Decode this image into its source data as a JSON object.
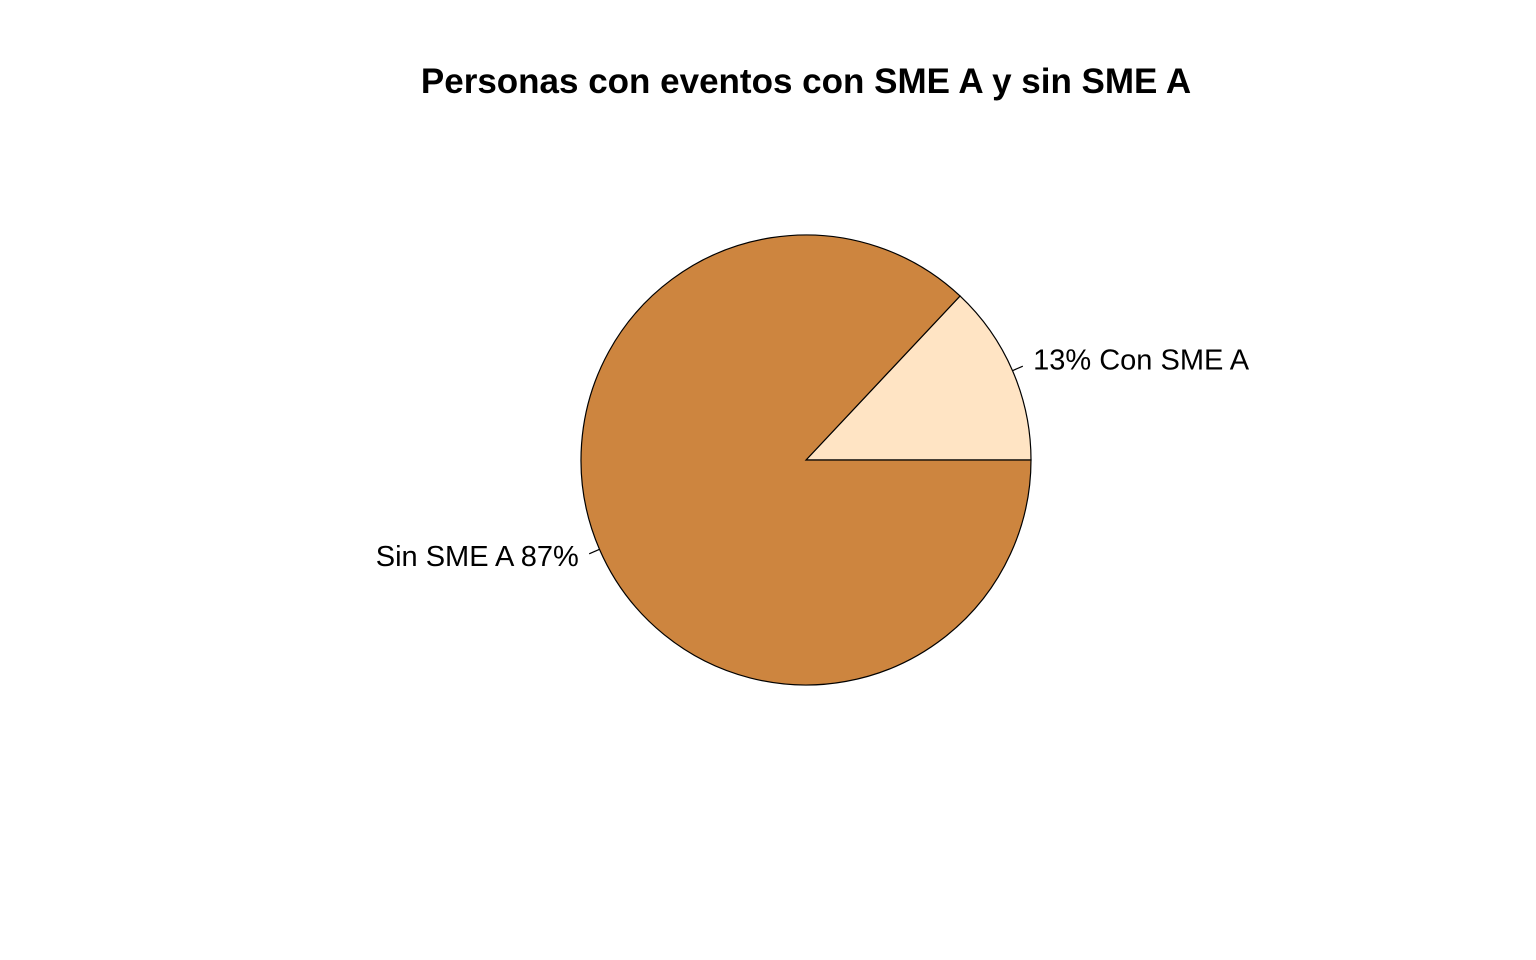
{
  "chart_data": {
    "type": "pie",
    "title": "Personas con eventos con SME A y sin SME A",
    "slices": [
      {
        "label": "13% Con SME A",
        "value": 13,
        "color": "#FFE4C4"
      },
      {
        "label": "Sin SME A 87%",
        "value": 87,
        "color": "#CD853F"
      }
    ],
    "start_angle_deg": 0,
    "direction": "counterclockwise",
    "border_color": "#000000"
  }
}
